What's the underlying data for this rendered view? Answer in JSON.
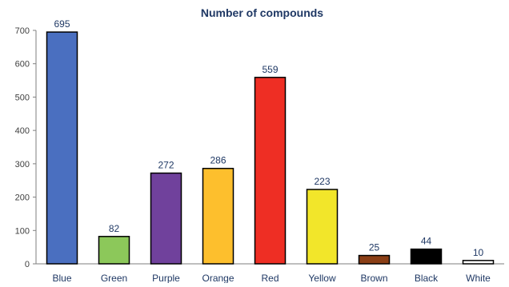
{
  "chart_data": {
    "type": "bar",
    "title": "Number of compounds",
    "xlabel": "",
    "ylabel": "",
    "ylim": [
      0,
      700
    ],
    "yticks": [
      0,
      100,
      200,
      300,
      400,
      500,
      600,
      700
    ],
    "grid": false,
    "categories": [
      "Blue",
      "Green",
      "Purple",
      "Orange",
      "Red",
      "Yellow",
      "Brown",
      "Black",
      "White"
    ],
    "values": [
      695,
      82,
      272,
      286,
      559,
      223,
      25,
      44,
      10
    ],
    "colors": [
      "#4a6fc0",
      "#8cc85a",
      "#70419c",
      "#fdbf2d",
      "#ee2e24",
      "#f2e62a",
      "#8a3e16",
      "#000000",
      "#ffffff"
    ]
  }
}
